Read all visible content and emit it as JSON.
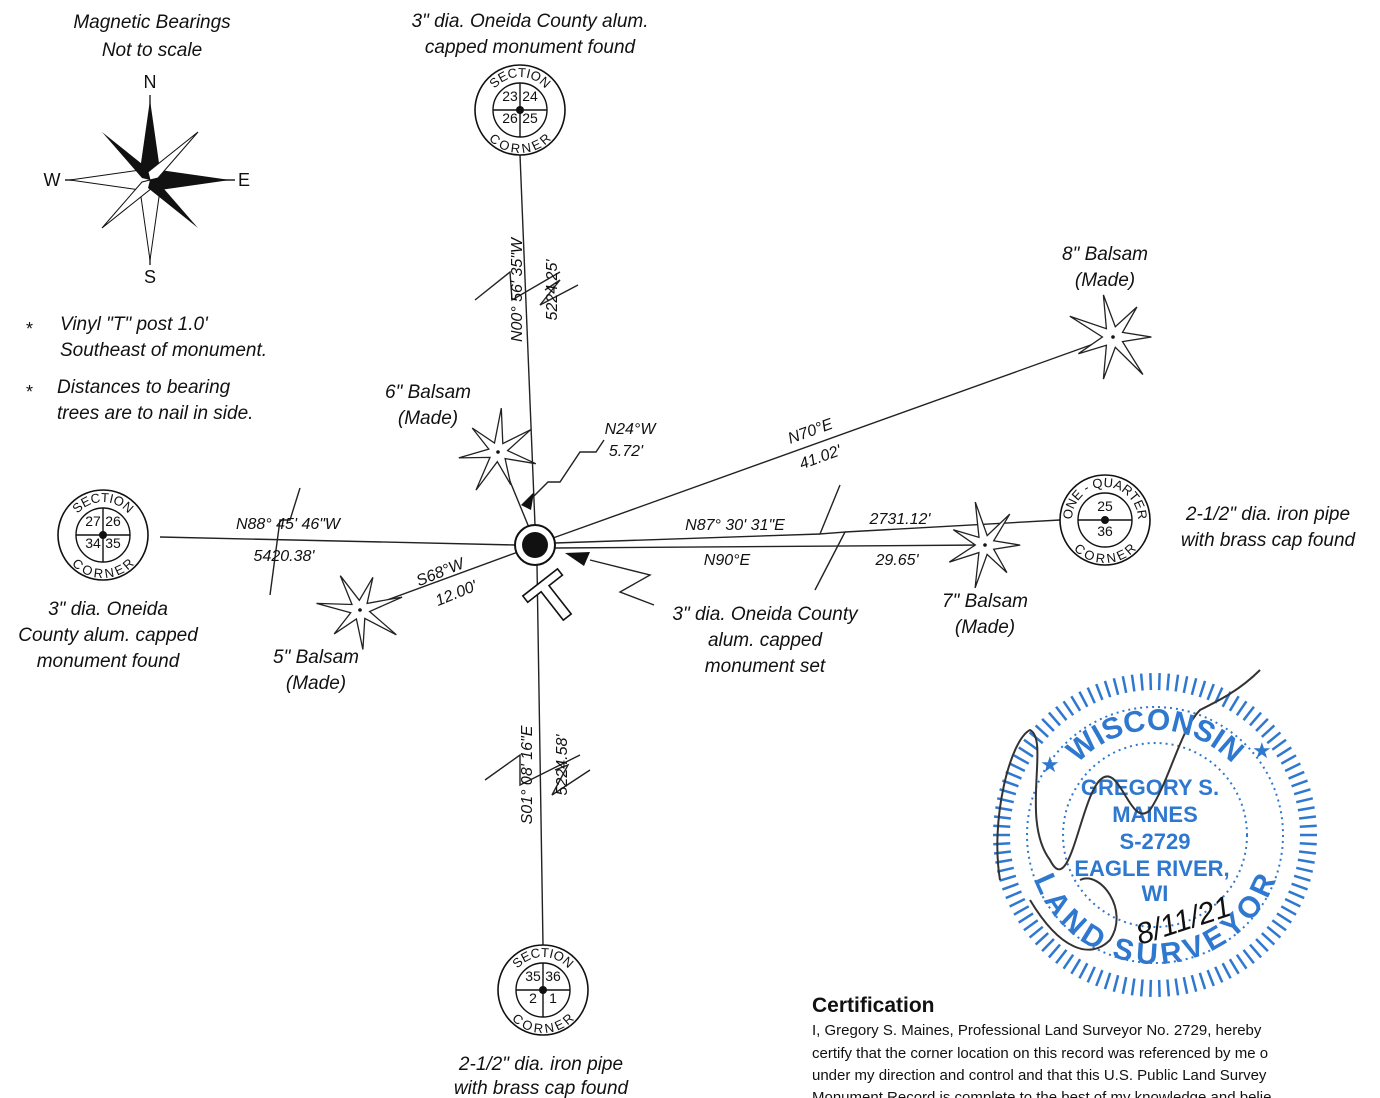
{
  "legend": {
    "title": "Magnetic Bearings",
    "subtitle": "Not to scale",
    "compass": {
      "n": "N",
      "e": "E",
      "s": "S",
      "w": "W"
    },
    "notes": [
      [
        "Vinyl \"T\" post 1.0'",
        "Southeast of monument."
      ],
      [
        "Distances to bearing",
        "trees are to nail in side."
      ]
    ]
  },
  "corners": {
    "north": {
      "top": "SECTION",
      "bottom": "CORNER",
      "numbers": [
        "23",
        "24",
        "26",
        "25"
      ],
      "description": [
        "3\" dia. Oneida County alum.",
        "capped monument found"
      ]
    },
    "west": {
      "top": "SECTION",
      "bottom": "CORNER",
      "numbers": [
        "27",
        "26",
        "34",
        "35"
      ],
      "description": [
        "3\" dia. Oneida",
        "County alum. capped",
        "monument found"
      ]
    },
    "south": {
      "top": "SECTION",
      "bottom": "CORNER",
      "numbers": [
        "35",
        "36",
        "2",
        "1"
      ],
      "description": [
        "2-1/2\" dia. iron pipe",
        "with brass cap found"
      ]
    },
    "east": {
      "top": "ONE - QUARTER",
      "bottom": "CORNER",
      "numbers": [
        "25",
        "36"
      ],
      "description": [
        "2-1/2\" dia. iron pipe",
        "with brass cap found"
      ]
    }
  },
  "center_monument": {
    "description": [
      "3\" dia. Oneida County",
      "alum. capped",
      "monument set"
    ]
  },
  "trees": [
    {
      "label": "8\" Balsam",
      "note": "(Made)",
      "bearing": "N70°E",
      "distance": "41.02'"
    },
    {
      "label": "6\" Balsam",
      "note": "(Made)",
      "bearing": "N24°W",
      "distance": "5.72'"
    },
    {
      "label": "5\" Balsam",
      "note": "(Made)",
      "bearing": "S68°W",
      "distance": "12.00'"
    },
    {
      "label": "7\" Balsam",
      "note": "(Made)",
      "bearing": "N90°E",
      "distance": "29.65'"
    }
  ],
  "lines": {
    "north": {
      "bearing": "N00° 56' 35\"W",
      "distance": "5224.25'"
    },
    "south": {
      "bearing": "S01° 08' 16\"E",
      "distance": "5224.58'"
    },
    "west": {
      "bearing": "N88° 45' 46\"W",
      "distance": "5420.38'"
    },
    "east": {
      "bearing": "N87° 30' 31\"E",
      "distance": "2731.12'"
    }
  },
  "stamp": {
    "top": "WISCONSIN",
    "bottom": "LAND SURVEYOR",
    "lines": [
      "GREGORY S.",
      "MAINES",
      "S-2729",
      "EAGLE RIVER,",
      "WI"
    ],
    "date": "8/11/21"
  },
  "certification": {
    "title": "Certification",
    "lines": [
      "I, Gregory S. Maines, Professional Land Surveyor No. 2729, hereby",
      "certify that the corner location on this record was referenced by me o",
      "under my direction and control and that this U.S. Public Land Survey",
      "Monument Record is complete to the best of my knowledge and belie"
    ]
  }
}
